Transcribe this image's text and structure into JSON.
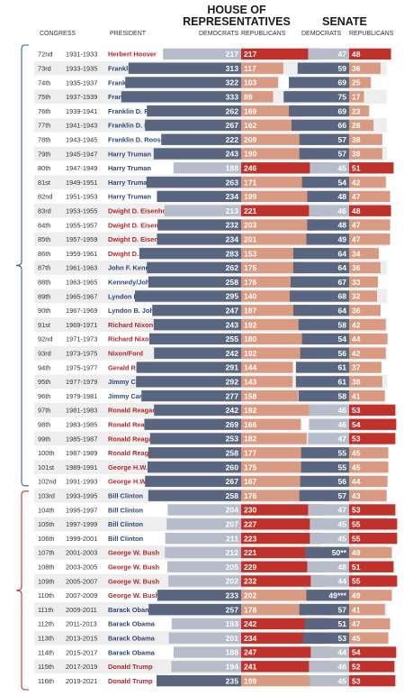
{
  "header": {
    "house_line1": "HOUSE OF",
    "house_line2": "REPRESENTATIVES",
    "senate": "SENATE",
    "col_congress": "CONGRESS",
    "col_president": "PRESIDENT",
    "col_house_dem": "DEMOCRATS",
    "col_house_rep": "REPUBLICANS",
    "col_senate_dem": "DEMOCRATS",
    "col_senate_rep": "REPUBLICANS"
  },
  "colors": {
    "dem_strong": "#5a6680",
    "dem_light": "#b6bcc9",
    "rep_strong": "#c0312b",
    "rep_light": "#d99a82",
    "party_dem_text": "#2c4a7a",
    "party_rep_text": "#b3262a",
    "bracket_dem": "#2d5fa8",
    "bracket_rep": "#c0312b",
    "row_alt": "#eeeeee"
  },
  "chart_data": {
    "type": "table",
    "columns": [
      "Congress",
      "Years",
      "President",
      "House Democrats",
      "House Republicans",
      "Senate Democrats",
      "Senate Republicans"
    ],
    "rows": [
      {
        "congress": "72nd",
        "years": "1931-1933",
        "president": "Herbert Hoover",
        "party": "R",
        "house_dem": 217,
        "house_rep": 217,
        "house_maj": "R",
        "senate_dem": 47,
        "senate_rep": 48,
        "senate_maj": "R"
      },
      {
        "congress": "73rd",
        "years": "1933-1935",
        "president": "Franklin D. Roosevelt",
        "party": "D",
        "house_dem": 313,
        "house_rep": 117,
        "house_maj": "D",
        "senate_dem": 59,
        "senate_rep": 36,
        "senate_maj": "D"
      },
      {
        "congress": "74th",
        "years": "1935-1937",
        "president": "Franklin D. Roosevelt",
        "party": "D",
        "house_dem": 322,
        "house_rep": 103,
        "house_maj": "D",
        "senate_dem": 69,
        "senate_rep": 25,
        "senate_maj": "D"
      },
      {
        "congress": "75th",
        "years": "1937-1939",
        "president": "Franklin D. Roosevelt",
        "party": "D",
        "house_dem": 333,
        "house_rep": 89,
        "house_maj": "D",
        "senate_dem": 75,
        "senate_rep": 17,
        "senate_maj": "D"
      },
      {
        "congress": "76th",
        "years": "1939-1941",
        "president": "Franklin D. Roosevelt",
        "party": "D",
        "house_dem": 262,
        "house_rep": 169,
        "house_maj": "D",
        "senate_dem": 69,
        "senate_rep": 23,
        "senate_maj": "D"
      },
      {
        "congress": "77th",
        "years": "1941-1943",
        "president": "Franklin D. Roosevelt",
        "party": "D",
        "house_dem": 267,
        "house_rep": 162,
        "house_maj": "D",
        "senate_dem": 66,
        "senate_rep": 28,
        "senate_maj": "D"
      },
      {
        "congress": "78th",
        "years": "1943-1945",
        "president": "Franklin D. Roosevelt",
        "party": "D",
        "house_dem": 222,
        "house_rep": 209,
        "house_maj": "D",
        "senate_dem": 57,
        "senate_rep": 38,
        "senate_maj": "D"
      },
      {
        "congress": "79th",
        "years": "1945-1947",
        "president": "Harry Truman",
        "party": "D",
        "house_dem": 243,
        "house_rep": 190,
        "house_maj": "D",
        "senate_dem": 57,
        "senate_rep": 38,
        "senate_maj": "D"
      },
      {
        "congress": "80th",
        "years": "1947-1949",
        "president": "Harry Truman",
        "party": "D",
        "house_dem": 188,
        "house_rep": 246,
        "house_maj": "R",
        "senate_dem": 45,
        "senate_rep": 51,
        "senate_maj": "R"
      },
      {
        "congress": "81st",
        "years": "1949-1951",
        "president": "Harry Truman",
        "party": "D",
        "house_dem": 263,
        "house_rep": 171,
        "house_maj": "D",
        "senate_dem": 54,
        "senate_rep": 42,
        "senate_maj": "D"
      },
      {
        "congress": "82nd",
        "years": "1951-1953",
        "president": "Harry Truman",
        "party": "D",
        "house_dem": 234,
        "house_rep": 199,
        "house_maj": "D",
        "senate_dem": 48,
        "senate_rep": 47,
        "senate_maj": "D"
      },
      {
        "congress": "83rd",
        "years": "1953-1955",
        "president": "Dwight D. Eisenhower",
        "party": "R",
        "house_dem": 213,
        "house_rep": 221,
        "house_maj": "R",
        "senate_dem": 46,
        "senate_rep": 48,
        "senate_maj": "R"
      },
      {
        "congress": "84th",
        "years": "1955-1957",
        "president": "Dwight D. Eisenhower",
        "party": "R",
        "house_dem": 232,
        "house_rep": 203,
        "house_maj": "D",
        "senate_dem": 48,
        "senate_rep": 47,
        "senate_maj": "D"
      },
      {
        "congress": "85th",
        "years": "1957-1959",
        "president": "Dwight D. Eisenhower",
        "party": "R",
        "house_dem": 234,
        "house_rep": 201,
        "house_maj": "D",
        "senate_dem": 49,
        "senate_rep": 47,
        "senate_maj": "D"
      },
      {
        "congress": "86th",
        "years": "1959-1961",
        "president": "Dwight D. Eisenhower",
        "party": "R",
        "house_dem": 283,
        "house_rep": 153,
        "house_maj": "D",
        "senate_dem": 64,
        "senate_rep": 34,
        "senate_maj": "D"
      },
      {
        "congress": "87th",
        "years": "1961-1963",
        "president": "John F. Kennedy",
        "party": "D",
        "house_dem": 262,
        "house_rep": 175,
        "house_maj": "D",
        "senate_dem": 64,
        "senate_rep": 36,
        "senate_maj": "D"
      },
      {
        "congress": "88th",
        "years": "1963-1965",
        "president": "Kennedy/Johnson",
        "party": "D",
        "house_dem": 258,
        "house_rep": 176,
        "house_maj": "D",
        "senate_dem": 67,
        "senate_rep": 33,
        "senate_maj": "D"
      },
      {
        "congress": "89th",
        "years": "1965-1967",
        "president": "Lyndon B. Johnson",
        "party": "D",
        "house_dem": 295,
        "house_rep": 140,
        "house_maj": "D",
        "senate_dem": 68,
        "senate_rep": 32,
        "senate_maj": "D"
      },
      {
        "congress": "90th",
        "years": "1967-1969",
        "president": "Lyndon B. Johnson",
        "party": "D",
        "house_dem": 247,
        "house_rep": 187,
        "house_maj": "D",
        "senate_dem": 64,
        "senate_rep": 36,
        "senate_maj": "D"
      },
      {
        "congress": "91st",
        "years": "1969-1971",
        "president": "Richard Nixon",
        "party": "R",
        "house_dem": 243,
        "house_rep": 192,
        "house_maj": "D",
        "senate_dem": 58,
        "senate_rep": 42,
        "senate_maj": "D"
      },
      {
        "congress": "92nd",
        "years": "1971-1973",
        "president": "Richard Nixon",
        "party": "R",
        "house_dem": 255,
        "house_rep": 180,
        "house_maj": "D",
        "senate_dem": 54,
        "senate_rep": 44,
        "senate_maj": "D"
      },
      {
        "congress": "93rd",
        "years": "1973-1975",
        "president": "Nixon/Ford",
        "party": "R",
        "house_dem": 242,
        "house_rep": 192,
        "house_maj": "D",
        "senate_dem": 56,
        "senate_rep": 42,
        "senate_maj": "D"
      },
      {
        "congress": "94th",
        "years": "1975-1977",
        "president": "Gerald R. Ford",
        "party": "R",
        "house_dem": 291,
        "house_rep": 144,
        "house_maj": "D",
        "senate_dem": 61,
        "senate_rep": 37,
        "senate_maj": "D"
      },
      {
        "congress": "95th",
        "years": "1977-1979",
        "president": "Jimmy Carter",
        "party": "D",
        "house_dem": 292,
        "house_rep": 143,
        "house_maj": "D",
        "senate_dem": 61,
        "senate_rep": 38,
        "senate_maj": "D"
      },
      {
        "congress": "96th",
        "years": "1979-1981",
        "president": "Jimmy Carter",
        "party": "D",
        "house_dem": 277,
        "house_rep": 158,
        "house_maj": "D",
        "senate_dem": 58,
        "senate_rep": 41,
        "senate_maj": "D"
      },
      {
        "congress": "97th",
        "years": "1981-1983",
        "president": "Ronald Reagan",
        "party": "R",
        "house_dem": 242,
        "house_rep": 192,
        "house_maj": "D",
        "senate_dem": 46,
        "senate_rep": 53,
        "senate_maj": "R"
      },
      {
        "congress": "98th",
        "years": "1983-1985",
        "president": "Ronald Reagan",
        "party": "R",
        "house_dem": 269,
        "house_rep": 166,
        "house_maj": "D",
        "senate_dem": 46,
        "senate_rep": 54,
        "senate_maj": "R"
      },
      {
        "congress": "99th",
        "years": "1985-1987",
        "president": "Ronald Reagan",
        "party": "R",
        "house_dem": 253,
        "house_rep": 182,
        "house_maj": "D",
        "senate_dem": 47,
        "senate_rep": 53,
        "senate_maj": "R"
      },
      {
        "congress": "100th",
        "years": "1987-1989",
        "president": "Ronald Reagan",
        "party": "R",
        "house_dem": 258,
        "house_rep": 177,
        "house_maj": "D",
        "senate_dem": 55,
        "senate_rep": 45,
        "senate_maj": "D"
      },
      {
        "congress": "101st",
        "years": "1989-1991",
        "president": "George H.W. Bush",
        "party": "R",
        "house_dem": 260,
        "house_rep": 175,
        "house_maj": "D",
        "senate_dem": 55,
        "senate_rep": 45,
        "senate_maj": "D"
      },
      {
        "congress": "102nd",
        "years": "1991-1993",
        "president": "George H.W. Bush",
        "party": "R",
        "house_dem": 267,
        "house_rep": 167,
        "house_maj": "D",
        "senate_dem": 56,
        "senate_rep": 44,
        "senate_maj": "D"
      },
      {
        "congress": "103rd",
        "years": "1993-1995",
        "president": "Bill Clinton",
        "party": "D",
        "house_dem": 258,
        "house_rep": 176,
        "house_maj": "D",
        "senate_dem": 57,
        "senate_rep": 43,
        "senate_maj": "D"
      },
      {
        "congress": "104th",
        "years": "1995-1997",
        "president": "Bill Clinton",
        "party": "D",
        "house_dem": 204,
        "house_rep": 230,
        "house_maj": "R",
        "senate_dem": 47,
        "senate_rep": 53,
        "senate_maj": "R"
      },
      {
        "congress": "105th",
        "years": "1997-1999",
        "president": "Bill Clinton",
        "party": "D",
        "house_dem": 207,
        "house_rep": 227,
        "house_maj": "R",
        "senate_dem": 45,
        "senate_rep": 55,
        "senate_maj": "R"
      },
      {
        "congress": "106th",
        "years": "1999-2001",
        "president": "Bill Clinton",
        "party": "D",
        "house_dem": 211,
        "house_rep": 223,
        "house_maj": "R",
        "senate_dem": 45,
        "senate_rep": 55,
        "senate_maj": "R"
      },
      {
        "congress": "107th",
        "years": "2001-2003",
        "president": "George W. Bush",
        "party": "R",
        "house_dem": 212,
        "house_rep": 221,
        "house_maj": "R",
        "senate_dem": "50**",
        "senate_rep": 49,
        "senate_maj": "D"
      },
      {
        "congress": "108th",
        "years": "2003-2005",
        "president": "George W. Bush",
        "party": "R",
        "house_dem": 205,
        "house_rep": 229,
        "house_maj": "R",
        "senate_dem": 48,
        "senate_rep": 51,
        "senate_maj": "R"
      },
      {
        "congress": "109th",
        "years": "2005-2007",
        "president": "George W. Bush",
        "party": "R",
        "house_dem": 202,
        "house_rep": 232,
        "house_maj": "R",
        "senate_dem": 44,
        "senate_rep": 55,
        "senate_maj": "R"
      },
      {
        "congress": "110th",
        "years": "2007-2009",
        "president": "George W. Bush",
        "party": "R",
        "house_dem": 233,
        "house_rep": 202,
        "house_maj": "D",
        "senate_dem": "49***",
        "senate_rep": 49,
        "senate_maj": "D"
      },
      {
        "congress": "111th",
        "years": "2009-2011",
        "president": "Barack Obama",
        "party": "D",
        "house_dem": 257,
        "house_rep": 178,
        "house_maj": "D",
        "senate_dem": 57,
        "senate_rep": 41,
        "senate_maj": "D"
      },
      {
        "congress": "112th",
        "years": "2011-2013",
        "president": "Barack Obama",
        "party": "D",
        "house_dem": 193,
        "house_rep": 242,
        "house_maj": "R",
        "senate_dem": 51,
        "senate_rep": 47,
        "senate_maj": "D"
      },
      {
        "congress": "113th",
        "years": "2013-2015",
        "president": "Barack Obama",
        "party": "D",
        "house_dem": 201,
        "house_rep": 234,
        "house_maj": "R",
        "senate_dem": 53,
        "senate_rep": 45,
        "senate_maj": "D"
      },
      {
        "congress": "114th",
        "years": "2015-2017",
        "president": "Barack Obama",
        "party": "D",
        "house_dem": 188,
        "house_rep": 247,
        "house_maj": "R",
        "senate_dem": 44,
        "senate_rep": 54,
        "senate_maj": "R"
      },
      {
        "congress": "115th",
        "years": "2017-2019",
        "president": "Donald Trump",
        "party": "R",
        "house_dem": 194,
        "house_rep": 241,
        "house_maj": "R",
        "senate_dem": 46,
        "senate_rep": 52,
        "senate_maj": "R"
      },
      {
        "congress": "116th",
        "years": "2019-2021",
        "president": "Donald Trump",
        "party": "R",
        "house_dem": 235,
        "house_rep": 199,
        "house_maj": "D",
        "senate_dem": 45,
        "senate_rep": 53,
        "senate_maj": "R"
      }
    ]
  }
}
